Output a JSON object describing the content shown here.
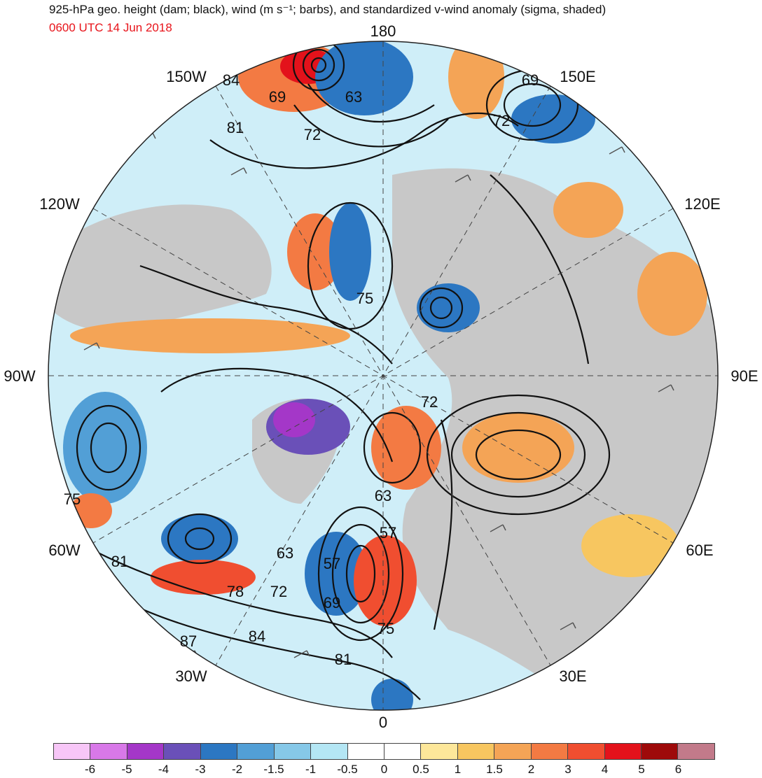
{
  "header": {
    "title": "925-hPa geo. height (dam; black), wind (m s⁻¹; barbs), and standardized v-wind anomaly (sigma, shaded)",
    "datetime": "0600 UTC 14 Jun 2018"
  },
  "map": {
    "projection": "north polar stereographic",
    "longitude_labels": {
      "lon_180": "180",
      "lon_150e": "150E",
      "lon_120e": "120E",
      "lon_90e": "90E",
      "lon_60e": "60E",
      "lon_30e": "30E",
      "lon_0": "0",
      "lon_30w": "30W",
      "lon_60w": "60W",
      "lon_90w": "90W",
      "lon_120w": "120W",
      "lon_150w": "150W"
    },
    "contour_labels": [
      "84",
      "69",
      "63",
      "81",
      "72",
      "69",
      "72",
      "75",
      "72",
      "75",
      "63",
      "57",
      "81",
      "63",
      "57",
      "78",
      "72",
      "69",
      "87",
      "84",
      "81",
      "75"
    ],
    "colors": {
      "land": "#c8c8c8",
      "ocean": "#ffffff",
      "contour": "#111111",
      "positive_anomaly": "#f0703a",
      "negative_anomaly": "#2f7ec8"
    }
  },
  "colorbar": {
    "colors": [
      "#f7c6f7",
      "#d878e8",
      "#a437c8",
      "#6a50b8",
      "#2c77c2",
      "#529fd6",
      "#86c8e8",
      "#b4e6f4",
      "#ffffff",
      "#ffffff",
      "#fde79a",
      "#f7c660",
      "#f4a456",
      "#f37a43",
      "#f04e30",
      "#e3121b",
      "#9e0a0a",
      "#c27a8a"
    ],
    "ticks": [
      "-6",
      "-5",
      "-4",
      "-3",
      "-2",
      "-1.5",
      "-1",
      "-0.5",
      "0",
      "0.5",
      "1",
      "1.5",
      "2",
      "3",
      "4",
      "5",
      "6"
    ]
  }
}
